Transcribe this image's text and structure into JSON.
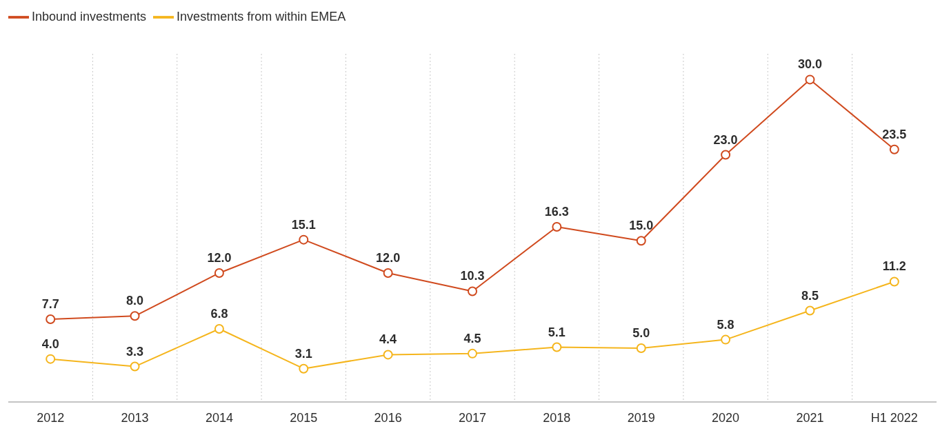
{
  "chart_data": {
    "type": "line",
    "categories": [
      "2012",
      "2013",
      "2014",
      "2015",
      "2016",
      "2017",
      "2018",
      "2019",
      "2020",
      "2021",
      "H1 2022"
    ],
    "series": [
      {
        "name": "Inbound investments",
        "color": "#d04a1e",
        "values": [
          7.7,
          8.0,
          12.0,
          15.1,
          12.0,
          10.3,
          16.3,
          15.0,
          23.0,
          30.0,
          23.5
        ],
        "value_labels": [
          "7.7",
          "8.0",
          "12.0",
          "15.1",
          "12.0",
          "10.3",
          "16.3",
          "15.0",
          "23.0",
          "30.0",
          "23.5"
        ]
      },
      {
        "name": "Investments from within EMEA",
        "color": "#f5b51c",
        "values": [
          4.0,
          3.3,
          6.8,
          3.1,
          4.4,
          4.5,
          5.1,
          5.0,
          5.8,
          8.5,
          11.2
        ],
        "value_labels": [
          "4.0",
          "3.3",
          "6.8",
          "3.1",
          "4.4",
          "4.5",
          "5.1",
          "5.0",
          "5.8",
          "8.5",
          "11.2"
        ]
      }
    ],
    "grid": "x",
    "legend": "top left",
    "marker": "circle",
    "line_style": "solid"
  }
}
